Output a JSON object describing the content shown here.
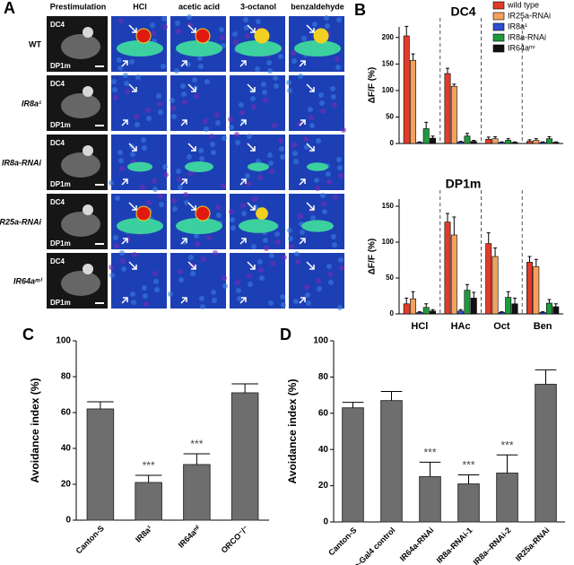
{
  "panel_a": {
    "label": "A",
    "columns": [
      "Prestimulation",
      "HCl",
      "acetic acid",
      "3-octanol",
      "benzaldehyde"
    ],
    "rows": [
      "WT",
      "IR8a¹",
      "IR8a-RNAi",
      "IR25a-RNAi",
      "IR64aᵐⁱ"
    ],
    "region_labels": [
      "DC4",
      "DP1m"
    ]
  },
  "chart_data": [
    {
      "type": "bar",
      "panel": "B",
      "title": "DC4",
      "ylabel": "ΔF/F (%)",
      "categories": [
        null,
        null,
        null,
        null
      ],
      "series": [
        {
          "name": "wild type",
          "color": "#e23b2a",
          "values": [
            203,
            132,
            8,
            4
          ],
          "errors": [
            18,
            10,
            4,
            3
          ]
        },
        {
          "name": "IR25a-RNAi",
          "color": "#f4a15f",
          "values": [
            157,
            108,
            9,
            6
          ],
          "errors": [
            12,
            4,
            4,
            3
          ]
        },
        {
          "name": "IR8a¹",
          "color": "#2f4fd0",
          "values": [
            2,
            3,
            2,
            2
          ],
          "errors": [
            1,
            1,
            1,
            1
          ]
        },
        {
          "name": "IR8a-RNAi",
          "color": "#1f9a3e",
          "values": [
            28,
            14,
            6,
            9
          ],
          "errors": [
            12,
            5,
            3,
            4
          ]
        },
        {
          "name": "IR64aᵐⁱ",
          "color": "#111111",
          "values": [
            10,
            4,
            2,
            2
          ],
          "errors": [
            4,
            2,
            1,
            1
          ]
        }
      ],
      "ylim": [
        0,
        220
      ],
      "yticks": [
        0,
        50,
        100,
        150,
        200
      ],
      "group_dividers": true
    },
    {
      "type": "bar",
      "title": "DP1m",
      "ylabel": "ΔF/F (%)",
      "categories": [
        "HCl",
        "HAc",
        "Oct",
        "Ben"
      ],
      "series": [
        {
          "color": "#e23b2a",
          "values": [
            14,
            128,
            98,
            72
          ],
          "errors": [
            8,
            12,
            15,
            8
          ]
        },
        {
          "color": "#f4a15f",
          "values": [
            21,
            110,
            80,
            66
          ],
          "errors": [
            10,
            25,
            12,
            10
          ]
        },
        {
          "color": "#2f4fd0",
          "values": [
            2,
            4,
            2,
            2
          ],
          "errors": [
            1,
            2,
            1,
            1
          ]
        },
        {
          "color": "#1f9a3e",
          "values": [
            9,
            33,
            23,
            15
          ],
          "errors": [
            5,
            8,
            8,
            5
          ]
        },
        {
          "color": "#111111",
          "values": [
            4,
            22,
            14,
            10
          ],
          "errors": [
            2,
            8,
            8,
            4
          ]
        }
      ],
      "ylim": [
        0,
        160
      ],
      "yticks": [
        0,
        50,
        100,
        150
      ],
      "group_dividers": true
    },
    {
      "type": "bar",
      "panel": "C",
      "ylabel": "Avoidance index (%)",
      "categories": [
        "Canton-S",
        "IR8a¹",
        "IR64aᵐⁱ",
        "ORCO⁻/⁻"
      ],
      "values": [
        62,
        21,
        31,
        71
      ],
      "errors": [
        4,
        4,
        6,
        5
      ],
      "color": "#6e6e6e",
      "value_annotations": [
        null,
        "***",
        "***",
        null
      ],
      "ylim": [
        0,
        100
      ],
      "yticks": [
        0,
        20,
        40,
        60,
        80,
        100
      ]
    },
    {
      "type": "bar",
      "panel": "D",
      "ylabel": "Avoidance index (%)",
      "categories": [
        "Canton-S",
        "IR64a-Gal4 control",
        "IR64a-RNAi",
        "IR8a-RNAi-1",
        "IR8a--RNAi-2",
        "IR25a-RNAi"
      ],
      "values": [
        63,
        67,
        25,
        21,
        27,
        76
      ],
      "errors": [
        3,
        5,
        8,
        5,
        10,
        8
      ],
      "color": "#6e6e6e",
      "value_annotations": [
        null,
        null,
        "***",
        "***",
        "***",
        null
      ],
      "ylim": [
        0,
        100
      ],
      "yticks": [
        0,
        20,
        40,
        60,
        80,
        100
      ]
    }
  ]
}
